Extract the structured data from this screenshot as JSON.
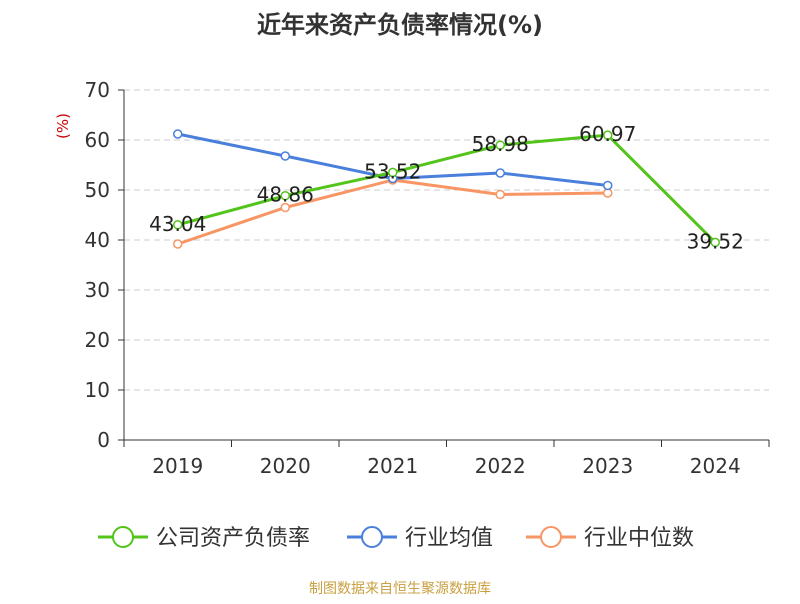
{
  "chart_data": {
    "type": "line",
    "title": "近年来资产负债率情况(%)",
    "ylabel": "(%)",
    "xlabel": "",
    "categories": [
      "2019",
      "2020",
      "2021",
      "2022",
      "2023",
      "2024"
    ],
    "ylim": [
      0,
      70
    ],
    "yticks": [
      0,
      10,
      20,
      30,
      40,
      50,
      60,
      70
    ],
    "grid": true,
    "legend_position": "bottom",
    "series": [
      {
        "name": "公司资产负债率",
        "color": "#52c41a",
        "values": [
          43.04,
          48.86,
          53.52,
          58.98,
          60.97,
          39.52
        ],
        "labels": [
          "43.04",
          "48.86",
          "53.52",
          "58.98",
          "60.97",
          "39.52"
        ]
      },
      {
        "name": "行业均值",
        "color": "#4a7fdc",
        "values": [
          61.2,
          56.8,
          52.3,
          53.4,
          50.9,
          null
        ]
      },
      {
        "name": "行业中位数",
        "color": "#f79564",
        "values": [
          39.2,
          46.5,
          52.0,
          49.1,
          49.4,
          null
        ]
      }
    ],
    "source": "制图数据来自恒生聚源数据库"
  }
}
